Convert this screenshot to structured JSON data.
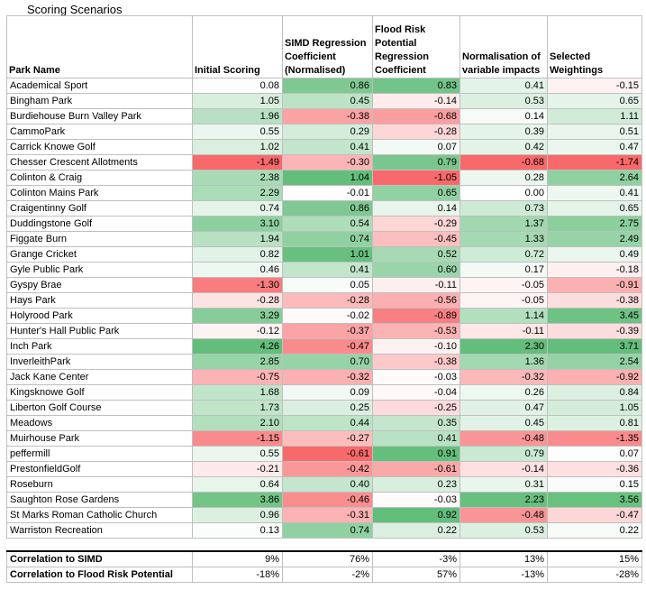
{
  "title": "Scoring Scenarios",
  "headers": [
    "Park Name",
    "Initial Scoring",
    "SIMD Regression Coefficient (Normalised)",
    "Flood Risk Potential Regression Coefficient",
    "Normalisation of variable impacts",
    "Selected Weightings"
  ],
  "rows": [
    {
      "name": "Academical Sport",
      "values": [
        "0.08",
        "0.86",
        "0.83",
        "0.41",
        "-0.15"
      ]
    },
    {
      "name": "Bingham Park",
      "values": [
        "1.05",
        "0.45",
        "-0.14",
        "0.53",
        "0.65"
      ]
    },
    {
      "name": "Burdiehouse Burn Valley Park",
      "values": [
        "1.96",
        "-0.38",
        "-0.68",
        "0.14",
        "1.11"
      ]
    },
    {
      "name": "CammoPark",
      "values": [
        "0.55",
        "0.29",
        "-0.28",
        "0.39",
        "0.51"
      ]
    },
    {
      "name": "Carrick Knowe Golf",
      "values": [
        "1.02",
        "0.41",
        "0.07",
        "0.42",
        "0.47"
      ]
    },
    {
      "name": "Chesser Crescent Allotments",
      "values": [
        "-1.49",
        "-0.30",
        "0.79",
        "-0.68",
        "-1.74"
      ]
    },
    {
      "name": "Colinton & Craig",
      "values": [
        "2.38",
        "1.04",
        "-1.05",
        "0.28",
        "2.64"
      ]
    },
    {
      "name": "Colinton Mains Park",
      "values": [
        "2.29",
        "-0.01",
        "0.65",
        "0.00",
        "0.41"
      ]
    },
    {
      "name": "Craigentinny Golf",
      "values": [
        "0.74",
        "0.86",
        "0.14",
        "0.73",
        "0.65"
      ]
    },
    {
      "name": "Duddingstone Golf",
      "values": [
        "3.10",
        "0.54",
        "-0.29",
        "1.37",
        "2.75"
      ]
    },
    {
      "name": "Figgate Burn",
      "values": [
        "1.94",
        "0.74",
        "-0.45",
        "1.33",
        "2.49"
      ]
    },
    {
      "name": "Grange Cricket",
      "values": [
        "0.82",
        "1.01",
        "0.52",
        "0.72",
        "0.49"
      ]
    },
    {
      "name": "Gyle Public Park",
      "values": [
        "0.46",
        "0.41",
        "0.60",
        "0.17",
        "-0.18"
      ]
    },
    {
      "name": "Gyspy Brae",
      "values": [
        "-1.30",
        "0.05",
        "-0.11",
        "-0.05",
        "-0.91"
      ]
    },
    {
      "name": "Hays Park",
      "values": [
        "-0.28",
        "-0.28",
        "-0.56",
        "-0.05",
        "-0.38"
      ]
    },
    {
      "name": "Holyrood Park",
      "values": [
        "3.29",
        "-0.02",
        "-0.89",
        "1.14",
        "3.45"
      ]
    },
    {
      "name": "Hunter's Hall Public Park",
      "values": [
        "-0.12",
        "-0.37",
        "-0.53",
        "-0.11",
        "-0.39"
      ]
    },
    {
      "name": "Inch Park",
      "values": [
        "4.26",
        "-0.47",
        "-0.10",
        "2.30",
        "3.71"
      ]
    },
    {
      "name": "InverleithPark",
      "values": [
        "2.85",
        "0.70",
        "-0.38",
        "1.36",
        "2.54"
      ]
    },
    {
      "name": "Jack Kane Center",
      "values": [
        "-0.75",
        "-0.32",
        "-0.03",
        "-0.32",
        "-0.92"
      ]
    },
    {
      "name": "Kingsknowe Golf",
      "values": [
        "1.68",
        "0.09",
        "-0.04",
        "0.26",
        "0.84"
      ]
    },
    {
      "name": "Liberton Golf Course",
      "values": [
        "1.73",
        "0.25",
        "-0.25",
        "0.47",
        "1.05"
      ]
    },
    {
      "name": "Meadows",
      "values": [
        "2.10",
        "0.44",
        "0.35",
        "0.45",
        "0.81"
      ]
    },
    {
      "name": "Muirhouse Park",
      "values": [
        "-1.15",
        "-0.27",
        "0.41",
        "-0.48",
        "-1.35"
      ]
    },
    {
      "name": "peffermill",
      "values": [
        "0.55",
        "-0.61",
        "0.91",
        "0.79",
        "0.07"
      ]
    },
    {
      "name": "PrestonfieldGolf",
      "values": [
        "-0.21",
        "-0.42",
        "-0.61",
        "-0.14",
        "-0.36"
      ]
    },
    {
      "name": "Roseburn",
      "values": [
        "0.64",
        "0.40",
        "0.23",
        "0.31",
        "0.15"
      ]
    },
    {
      "name": "Saughton Rose Gardens",
      "values": [
        "3.86",
        "-0.46",
        "-0.03",
        "2.23",
        "3.56"
      ]
    },
    {
      "name": "St Marks Roman Catholic Church",
      "values": [
        "0.96",
        "-0.31",
        "0.92",
        "-0.48",
        "-0.47"
      ]
    },
    {
      "name": "Warriston Recreation",
      "values": [
        "0.13",
        "0.74",
        "0.22",
        "0.53",
        "0.22"
      ]
    }
  ],
  "correlations": [
    {
      "label": "Correlation to SIMD",
      "values": [
        "9%",
        "76%",
        "-3%",
        "13%",
        "15%"
      ]
    },
    {
      "label": "Correlation to Flood Risk Potential",
      "values": [
        "-18%",
        "-2%",
        "57%",
        "-13%",
        "-28%"
      ]
    }
  ],
  "colors": {
    "positive": "#63be7b",
    "negative": "#f8696b",
    "neutral": "#ffffff"
  }
}
